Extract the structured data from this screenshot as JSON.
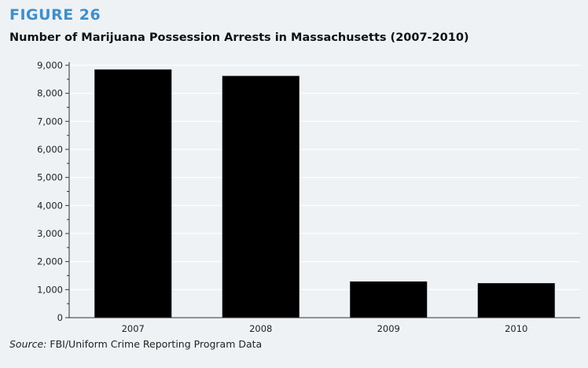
{
  "figure_label": "FIGURE 26",
  "source_prefix": "Source:",
  "source_text": " FBI/Uniform Crime Reporting Program Data",
  "colors": {
    "bar": "#000000",
    "grid": "#ffffff",
    "figure_label": "#3f8fc9",
    "background": "#eef2f5"
  },
  "chart_data": {
    "type": "bar",
    "title": "Number of Marijuana Possession Arrests in Massachusetts (2007-2010)",
    "xlabel": "",
    "ylabel": "",
    "categories": [
      "2007",
      "2008",
      "2009",
      "2010"
    ],
    "values": [
      8850,
      8620,
      1290,
      1230
    ],
    "ylim": [
      0,
      9000
    ],
    "yticks": [
      0,
      1000,
      2000,
      3000,
      4000,
      5000,
      6000,
      7000,
      8000,
      9000
    ],
    "ytick_labels": [
      "0",
      "1,000",
      "2,000",
      "3,000",
      "4,000",
      "5,000",
      "6,000",
      "7,000",
      "8,000",
      "9,000"
    ],
    "grid": true,
    "legend": "none"
  }
}
